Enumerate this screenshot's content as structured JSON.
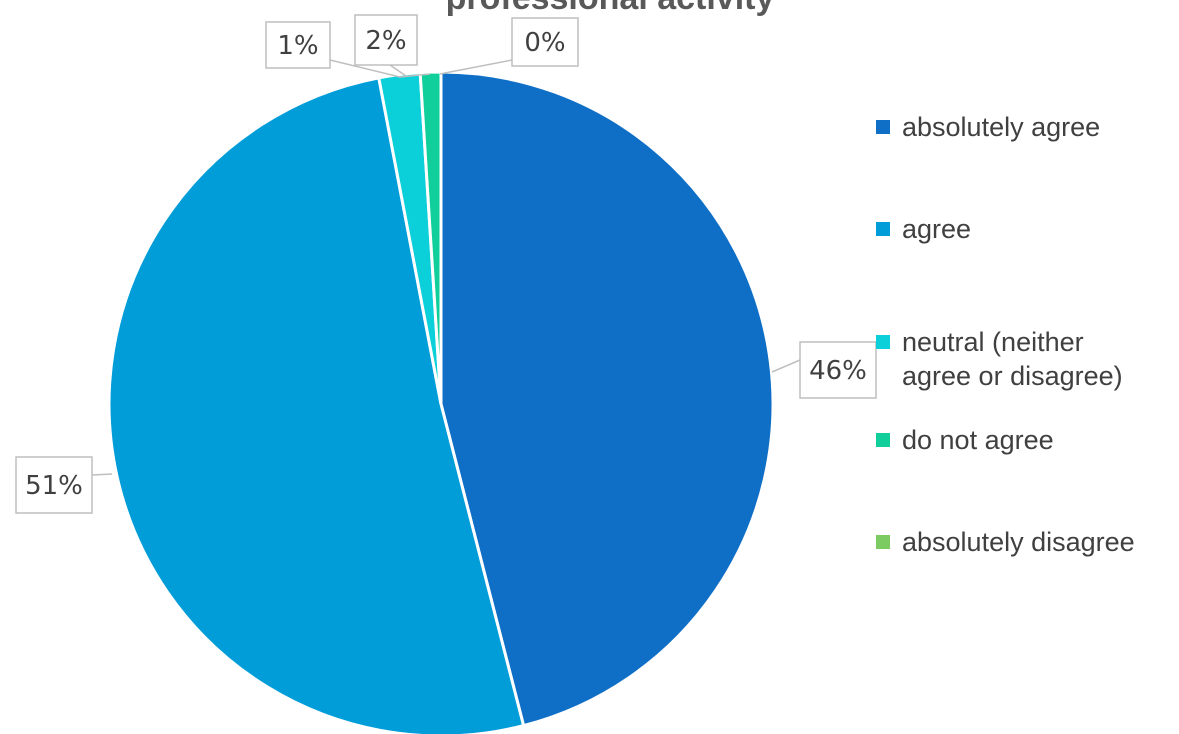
{
  "chart_data": {
    "type": "pie",
    "title": "professional activity",
    "categories": [
      "absolutely agree",
      "agree",
      "neutral (neither agree or disagree)",
      "do not agree",
      "absolutely disagree"
    ],
    "values": [
      46,
      51,
      2,
      1,
      0
    ],
    "data_labels": [
      "46%",
      "51%",
      "2%",
      "1%",
      "0%"
    ],
    "colors": [
      "#0F6FC6",
      "#009DD9",
      "#0BD0D9",
      "#10CF9B",
      "#7CCA62"
    ],
    "legend_position": "right"
  },
  "legend": [
    {
      "label": "absolutely agree",
      "color": "#0F6FC6"
    },
    {
      "label": "agree",
      "color": "#009DD9"
    },
    {
      "label": "neutral (neither agree or disagree)",
      "color": "#0BD0D9"
    },
    {
      "label": "do not agree",
      "color": "#10CF9B"
    },
    {
      "label": "absolutely disagree",
      "color": "#7CCA62"
    }
  ]
}
